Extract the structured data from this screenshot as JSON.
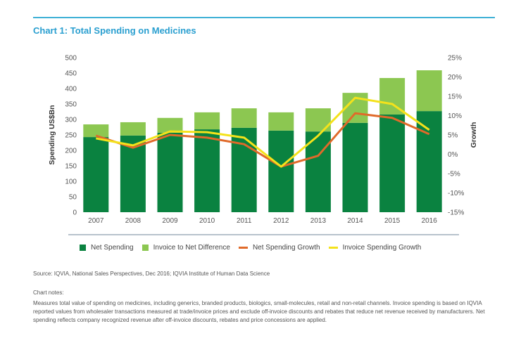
{
  "header": {
    "title": "Chart 1: Total Spending on Medicines"
  },
  "chart_data": {
    "type": "bar",
    "title": "Chart 1: Total Spending on Medicines",
    "stacked": true,
    "categories": [
      "2007",
      "2008",
      "2009",
      "2010",
      "2011",
      "2012",
      "2013",
      "2014",
      "2015",
      "2016"
    ],
    "series": [
      {
        "name": "Net Spending",
        "kind": "bar",
        "axis": "left",
        "color": "#0a8240",
        "values": [
          243,
          248,
          257,
          268,
          273,
          264,
          261,
          289,
          316,
          327
        ]
      },
      {
        "name": "Invoice to Net Difference",
        "kind": "bar",
        "axis": "left",
        "color": "#8cc751",
        "values": [
          41,
          43,
          48,
          55,
          63,
          59,
          75,
          97,
          118,
          132
        ]
      },
      {
        "name": "Net Spending Growth",
        "kind": "line",
        "axis": "right",
        "unit": "%",
        "color": "#e06a2a",
        "values": [
          4.8,
          1.7,
          5.0,
          4.3,
          2.6,
          -3.2,
          -0.4,
          10.6,
          9.4,
          5.2
        ]
      },
      {
        "name": "Invoice Spending Growth",
        "kind": "line",
        "axis": "right",
        "unit": "%",
        "color": "#f4e21b",
        "values": [
          4.1,
          2.3,
          5.9,
          5.7,
          4.3,
          -3.2,
          4.8,
          14.6,
          13.0,
          6.3
        ]
      }
    ],
    "ylabel": "Spending US$Bn",
    "ylim": [
      0,
      500
    ],
    "yticks": [
      "0",
      "50",
      "100",
      "150",
      "200",
      "250",
      "300",
      "350",
      "400",
      "450",
      "500"
    ],
    "y2label": "Growth",
    "y2lim": [
      -15,
      25
    ],
    "y2ticks": [
      "-15%",
      "-10%",
      "-5%",
      "0%",
      "5%",
      "10%",
      "15%",
      "20%",
      "25%"
    ],
    "xlabel": "",
    "grid": false,
    "legend_position": "bottom"
  },
  "legend": [
    {
      "label": "Net Spending",
      "type": "swatch",
      "color": "#0a8240"
    },
    {
      "label": "Invoice to Net Difference",
      "type": "swatch",
      "color": "#8cc751"
    },
    {
      "label": "Net Spending Growth",
      "type": "line",
      "color": "#e06a2a"
    },
    {
      "label": "Invoice Spending Growth",
      "type": "line",
      "color": "#f4e21b"
    }
  ],
  "footer": {
    "source": "Source: IQVIA, National Sales Perspectives, Dec 2016; IQVIA Institute of Human Data Science",
    "notes_heading": "Chart notes:",
    "notes": "Measures total value of spending on medicines, including generics, branded products, biologics, small-molecules, retail and non-retail channels. Invoice spending is based on IQVIA reported values from wholesaler transactions measured at trade/invoice prices and exclude off-invoice discounts and rebates that reduce net revenue received by manufacturers. Net spending reflects company recognized revenue after off-invoice discounts, rebates and price concessions are applied."
  }
}
